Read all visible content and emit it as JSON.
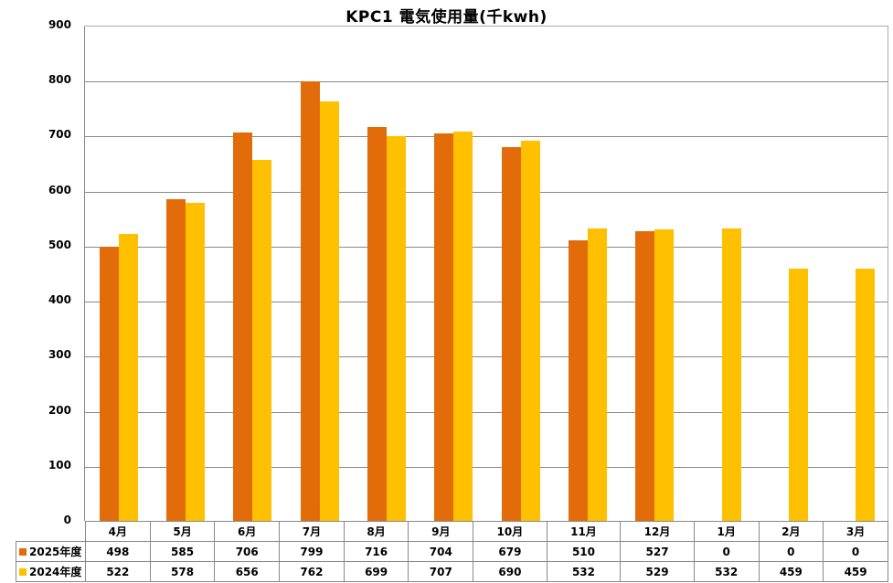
{
  "chart_data": {
    "type": "bar",
    "title": "KPC1 電気使用量(千kwh)",
    "xlabel": "",
    "ylabel": "",
    "ylim": [
      0,
      900
    ],
    "yticks": [
      0,
      100,
      200,
      300,
      400,
      500,
      600,
      700,
      800,
      900
    ],
    "grid": true,
    "legend_position": "data-table",
    "categories": [
      "4月",
      "5月",
      "6月",
      "7月",
      "8月",
      "9月",
      "10月",
      "11月",
      "12月",
      "1月",
      "2月",
      "3月"
    ],
    "series": [
      {
        "name": "2025年度",
        "color": "#E36C0A",
        "values": [
          498,
          585,
          706,
          799,
          716,
          704,
          679,
          510,
          527,
          0,
          0,
          0
        ]
      },
      {
        "name": "2024年度",
        "color": "#FFC000",
        "values": [
          522,
          578,
          656,
          762,
          699,
          707,
          690,
          532,
          529,
          532,
          459,
          459
        ]
      }
    ]
  }
}
